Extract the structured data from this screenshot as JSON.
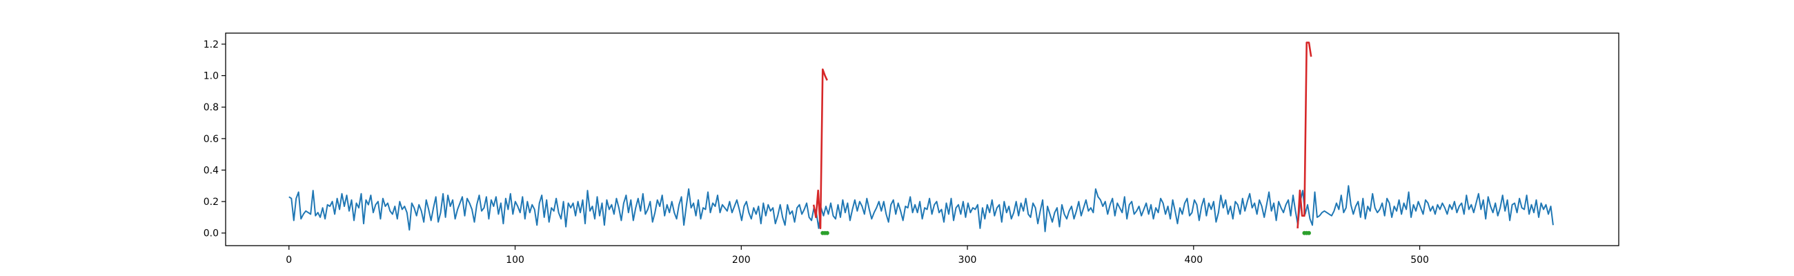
{
  "chart_data": {
    "type": "line",
    "title": "",
    "xlabel": "",
    "ylabel": "",
    "xlim": [
      -28,
      588
    ],
    "ylim": [
      -0.08,
      1.27
    ],
    "x_ticks": [
      0,
      100,
      200,
      300,
      400,
      500
    ],
    "x_tick_labels": [
      "0",
      "100",
      "200",
      "300",
      "400",
      "500"
    ],
    "y_ticks": [
      0.0,
      0.2,
      0.4,
      0.6,
      0.8,
      1.0,
      1.2
    ],
    "y_tick_labels": [
      "0.0",
      "0.2",
      "0.4",
      "0.6",
      "0.8",
      "1.0",
      "1.2"
    ],
    "grid": false,
    "legend": "none",
    "series": [
      {
        "color": "#1f77b4",
        "style": "line",
        "x_range": [
          0,
          559
        ],
        "values": [
          0.23,
          0.22,
          0.08,
          0.22,
          0.26,
          0.09,
          0.12,
          0.14,
          0.13,
          0.12,
          0.27,
          0.11,
          0.13,
          0.1,
          0.16,
          0.09,
          0.18,
          0.17,
          0.2,
          0.12,
          0.22,
          0.15,
          0.25,
          0.17,
          0.24,
          0.14,
          0.21,
          0.08,
          0.19,
          0.16,
          0.25,
          0.06,
          0.21,
          0.18,
          0.24,
          0.13,
          0.18,
          0.2,
          0.09,
          0.22,
          0.17,
          0.19,
          0.14,
          0.12,
          0.17,
          0.09,
          0.2,
          0.15,
          0.17,
          0.13,
          0.02,
          0.19,
          0.16,
          0.11,
          0.18,
          0.14,
          0.07,
          0.21,
          0.15,
          0.08,
          0.16,
          0.23,
          0.07,
          0.13,
          0.25,
          0.1,
          0.24,
          0.17,
          0.21,
          0.09,
          0.15,
          0.19,
          0.23,
          0.11,
          0.22,
          0.19,
          0.15,
          0.07,
          0.18,
          0.24,
          0.14,
          0.16,
          0.23,
          0.09,
          0.21,
          0.17,
          0.23,
          0.12,
          0.19,
          0.06,
          0.22,
          0.15,
          0.25,
          0.12,
          0.2,
          0.17,
          0.13,
          0.23,
          0.09,
          0.2,
          0.13,
          0.18,
          0.15,
          0.05,
          0.19,
          0.24,
          0.1,
          0.21,
          0.07,
          0.16,
          0.14,
          0.22,
          0.13,
          0.09,
          0.2,
          0.04,
          0.19,
          0.16,
          0.19,
          0.11,
          0.2,
          0.13,
          0.21,
          0.06,
          0.27,
          0.14,
          0.17,
          0.09,
          0.23,
          0.11,
          0.19,
          0.05,
          0.21,
          0.15,
          0.18,
          0.12,
          0.22,
          0.16,
          0.08,
          0.19,
          0.24,
          0.13,
          0.21,
          0.08,
          0.16,
          0.22,
          0.14,
          0.25,
          0.12,
          0.15,
          0.2,
          0.07,
          0.13,
          0.21,
          0.17,
          0.24,
          0.11,
          0.18,
          0.13,
          0.2,
          0.13,
          0.09,
          0.18,
          0.23,
          0.05,
          0.17,
          0.28,
          0.16,
          0.19,
          0.11,
          0.21,
          0.09,
          0.16,
          0.15,
          0.26,
          0.13,
          0.19,
          0.17,
          0.24,
          0.13,
          0.18,
          0.16,
          0.14,
          0.2,
          0.13,
          0.17,
          0.21,
          0.15,
          0.08,
          0.17,
          0.2,
          0.13,
          0.09,
          0.16,
          0.12,
          0.17,
          0.06,
          0.19,
          0.11,
          0.18,
          0.14,
          0.16,
          0.06,
          0.11,
          0.18,
          0.1,
          0.05,
          0.18,
          0.12,
          0.14,
          0.07,
          0.16,
          0.18,
          0.12,
          0.15,
          0.19,
          0.1,
          0.08,
          0.16,
          0.13,
          0.03,
          0.16,
          0.11,
          0.17,
          0.12,
          0.19,
          0.11,
          0.09,
          0.18,
          0.1,
          0.21,
          0.13,
          0.19,
          0.08,
          0.15,
          0.21,
          0.14,
          0.2,
          0.17,
          0.12,
          0.22,
          0.15,
          0.09,
          0.13,
          0.16,
          0.2,
          0.14,
          0.2,
          0.12,
          0.07,
          0.18,
          0.21,
          0.12,
          0.19,
          0.14,
          0.08,
          0.17,
          0.16,
          0.23,
          0.13,
          0.18,
          0.13,
          0.2,
          0.09,
          0.16,
          0.15,
          0.22,
          0.12,
          0.18,
          0.2,
          0.13,
          0.15,
          0.07,
          0.19,
          0.12,
          0.22,
          0.08,
          0.16,
          0.18,
          0.12,
          0.2,
          0.1,
          0.19,
          0.13,
          0.16,
          0.15,
          0.18,
          0.03,
          0.16,
          0.09,
          0.18,
          0.13,
          0.21,
          0.11,
          0.16,
          0.18,
          0.07,
          0.2,
          0.13,
          0.17,
          0.09,
          0.13,
          0.2,
          0.11,
          0.19,
          0.14,
          0.22,
          0.12,
          0.1,
          0.19,
          0.16,
          0.06,
          0.14,
          0.21,
          0.01,
          0.17,
          0.12,
          0.07,
          0.13,
          0.16,
          0.04,
          0.18,
          0.12,
          0.09,
          0.14,
          0.17,
          0.09,
          0.14,
          0.2,
          0.11,
          0.16,
          0.21,
          0.14,
          0.16,
          0.13,
          0.28,
          0.23,
          0.21,
          0.17,
          0.2,
          0.12,
          0.18,
          0.22,
          0.11,
          0.19,
          0.16,
          0.13,
          0.23,
          0.09,
          0.18,
          0.2,
          0.12,
          0.14,
          0.17,
          0.11,
          0.15,
          0.19,
          0.12,
          0.18,
          0.09,
          0.16,
          0.13,
          0.22,
          0.19,
          0.12,
          0.17,
          0.09,
          0.21,
          0.14,
          0.06,
          0.16,
          0.12,
          0.19,
          0.22,
          0.11,
          0.13,
          0.21,
          0.18,
          0.08,
          0.17,
          0.22,
          0.11,
          0.19,
          0.15,
          0.2,
          0.07,
          0.13,
          0.24,
          0.16,
          0.21,
          0.12,
          0.17,
          0.09,
          0.2,
          0.18,
          0.12,
          0.22,
          0.14,
          0.2,
          0.25,
          0.16,
          0.19,
          0.12,
          0.21,
          0.17,
          0.1,
          0.18,
          0.26,
          0.14,
          0.19,
          0.08,
          0.2,
          0.16,
          0.13,
          0.18,
          0.21,
          0.11,
          0.24,
          0.14,
          0.05,
          0.2,
          0.27,
          0.12,
          0.18,
          0.09,
          0.05,
          0.26,
          0.1,
          0.11,
          0.13,
          0.14,
          0.13,
          0.12,
          0.11,
          0.14,
          0.19,
          0.15,
          0.24,
          0.13,
          0.16,
          0.3,
          0.18,
          0.12,
          0.17,
          0.2,
          0.1,
          0.22,
          0.09,
          0.17,
          0.14,
          0.25,
          0.16,
          0.13,
          0.15,
          0.19,
          0.11,
          0.22,
          0.19,
          0.1,
          0.17,
          0.14,
          0.21,
          0.12,
          0.19,
          0.15,
          0.26,
          0.1,
          0.18,
          0.14,
          0.2,
          0.16,
          0.12,
          0.21,
          0.19,
          0.14,
          0.17,
          0.12,
          0.18,
          0.15,
          0.19,
          0.16,
          0.12,
          0.18,
          0.15,
          0.2,
          0.13,
          0.17,
          0.19,
          0.12,
          0.24,
          0.15,
          0.18,
          0.13,
          0.19,
          0.25,
          0.15,
          0.21,
          0.09,
          0.23,
          0.17,
          0.13,
          0.19,
          0.11,
          0.16,
          0.24,
          0.14,
          0.21,
          0.08,
          0.18,
          0.19,
          0.13,
          0.22,
          0.16,
          0.15,
          0.24,
          0.12,
          0.18,
          0.13,
          0.21,
          0.1,
          0.19,
          0.15,
          0.18,
          0.12,
          0.17,
          0.05
        ]
      },
      {
        "color": "#d62728",
        "style": "line",
        "segments": [
          {
            "x": [
              232,
              233,
              234,
              235,
              236,
              237,
              238
            ],
            "y": [
              0.18,
              0.1,
              0.27,
              0.03,
              1.04,
              1.0,
              0.97
            ]
          },
          {
            "x": [
              446,
              447,
              448,
              449,
              450,
              451,
              452
            ],
            "y": [
              0.03,
              0.27,
              0.11,
              0.11,
              1.21,
              1.21,
              1.12
            ]
          }
        ]
      },
      {
        "color": "#2ca02c",
        "style": "markers",
        "points": [
          [
            236,
            0.0
          ],
          [
            237,
            0.0
          ],
          [
            238,
            0.0
          ],
          [
            449,
            0.0
          ],
          [
            450,
            0.0
          ],
          [
            451,
            0.0
          ]
        ]
      }
    ]
  }
}
